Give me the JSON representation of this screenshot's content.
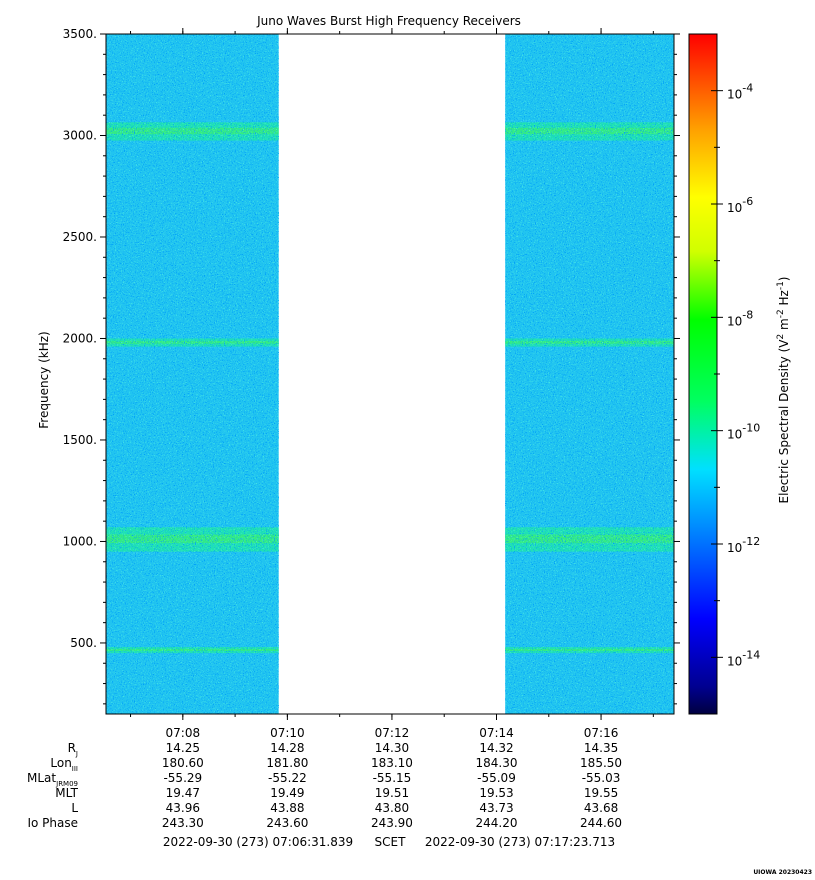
{
  "chart_data": {
    "type": "heatmap",
    "title": "Juno Waves Burst High Frequency Receivers",
    "ylabel": "Frequency (kHz)",
    "ylim": [
      150,
      3500
    ],
    "y_ticks": [
      500,
      1000,
      1500,
      2000,
      2500,
      3000,
      3500
    ],
    "y_tick_labels": [
      "500.",
      "1000.",
      "1500.",
      "2000.",
      "2500.",
      "3000.",
      "3500."
    ],
    "x_range_minutes": [
      "07:06:31.839",
      "07:17:23.713"
    ],
    "x_ticks": [
      "07:08",
      "07:10",
      "07:12",
      "07:14",
      "07:16"
    ],
    "data_gap": [
      "07:09:50",
      "07:14:10"
    ],
    "background_level": "10^-12",
    "emission_bands": [
      {
        "freq_center_khz": 3020,
        "freq_width_khz": 90,
        "level": "10^-11"
      },
      {
        "freq_center_khz": 1980,
        "freq_width_khz": 40,
        "level": "10^-11"
      },
      {
        "freq_center_khz": 1010,
        "freq_width_khz": 120,
        "level": "10^-11"
      },
      {
        "freq_center_khz": 465,
        "freq_width_khz": 30,
        "level": "10^-11"
      }
    ],
    "colorbar": {
      "label_main": "Electric Spectral Density (V",
      "label_sup1": "2",
      "label_mid": " m",
      "label_sup2": "-2",
      "label_mid2": " Hz",
      "label_sup3": "-1",
      "label_end": ")",
      "scale": "log",
      "range_exp": [
        -15,
        -3
      ],
      "tick_exponents": [
        -4,
        -6,
        -8,
        -10,
        -12,
        -14
      ],
      "tick_base": "10",
      "tick_sups": [
        "-4",
        "-6",
        "-8",
        "-10",
        "-12",
        "-14"
      ],
      "colors": [
        "#000060",
        "#0000ff",
        "#00a0ff",
        "#00e0e0",
        "#00ff80",
        "#00ff00",
        "#a0ff00",
        "#ffff00",
        "#ffa000",
        "#ff4000",
        "#ff0000"
      ]
    },
    "ephemeris": {
      "row_labels": [
        {
          "main": "R",
          "sub": "J"
        },
        {
          "main": "Lon",
          "sub": "III"
        },
        {
          "main": "MLat",
          "sub": "JRM09"
        },
        {
          "main": "MLT",
          "sub": ""
        },
        {
          "main": "L",
          "sub": ""
        },
        {
          "main": "Io Phase",
          "sub": ""
        }
      ],
      "rows": [
        [
          "14.25",
          "14.28",
          "14.30",
          "14.32",
          "14.35"
        ],
        [
          "180.60",
          "181.80",
          "183.10",
          "184.30",
          "185.50"
        ],
        [
          "-55.29",
          "-55.22",
          "-55.15",
          "-55.09",
          "-55.03"
        ],
        [
          "19.47",
          "19.49",
          "19.51",
          "19.53",
          "19.55"
        ],
        [
          "43.96",
          "43.88",
          "43.80",
          "43.73",
          "43.68"
        ],
        [
          "243.30",
          "243.60",
          "243.90",
          "244.20",
          "244.60"
        ]
      ]
    },
    "footer": {
      "start": "2022-09-30 (273) 07:06:31.839",
      "mid": "SCET",
      "end": "2022-09-30 (273) 07:17:23.713"
    },
    "credit": "UIOWA 20230423"
  }
}
